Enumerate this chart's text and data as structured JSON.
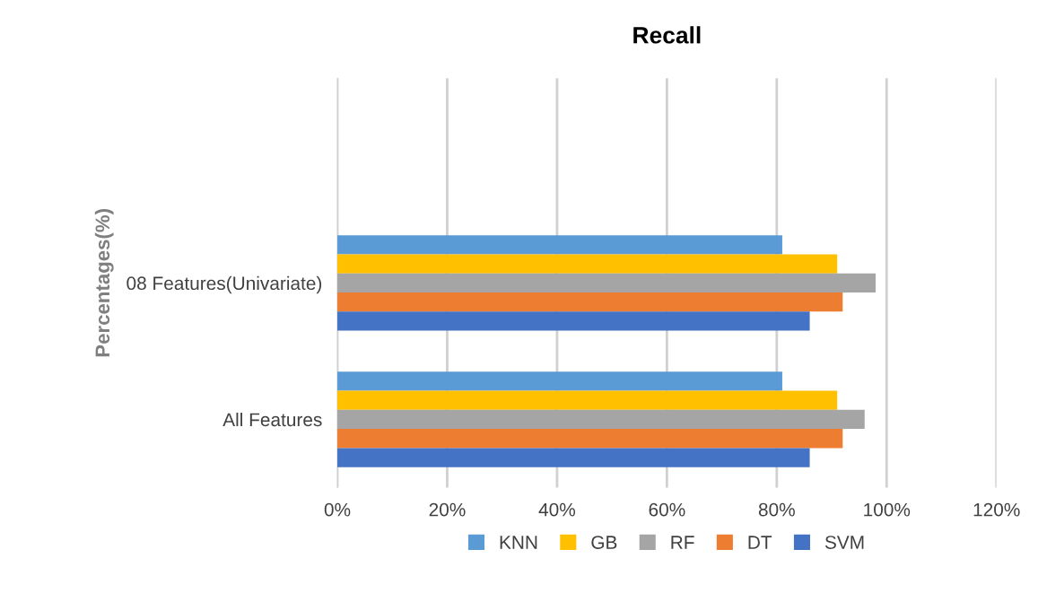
{
  "chart_data": {
    "type": "bar",
    "orientation": "horizontal",
    "title": "Recall",
    "ylabel": "Percentages(%)",
    "categories": [
      null,
      "08 Features(Univariate)",
      "All Features"
    ],
    "series": [
      {
        "name": "KNN",
        "color": "#5b9bd5",
        "values": [
          null,
          81,
          81
        ]
      },
      {
        "name": "GB",
        "color": "#ffc000",
        "values": [
          null,
          91,
          91
        ]
      },
      {
        "name": "RF",
        "color": "#a5a5a5",
        "values": [
          null,
          98,
          96
        ]
      },
      {
        "name": "DT",
        "color": "#ed7d31",
        "values": [
          null,
          92,
          92
        ]
      },
      {
        "name": "SVM",
        "color": "#4472c4",
        "values": [
          null,
          86,
          86
        ]
      }
    ],
    "xlim": [
      0,
      120
    ],
    "xticks": [
      {
        "value": 0,
        "label": "0%"
      },
      {
        "value": 20,
        "label": "20%"
      },
      {
        "value": 40,
        "label": "40%"
      },
      {
        "value": 60,
        "label": "60%"
      },
      {
        "value": 80,
        "label": "80%"
      },
      {
        "value": 100,
        "label": "100%"
      },
      {
        "value": 120,
        "label": "120%"
      }
    ],
    "grid": "x",
    "legend": "bottom"
  }
}
